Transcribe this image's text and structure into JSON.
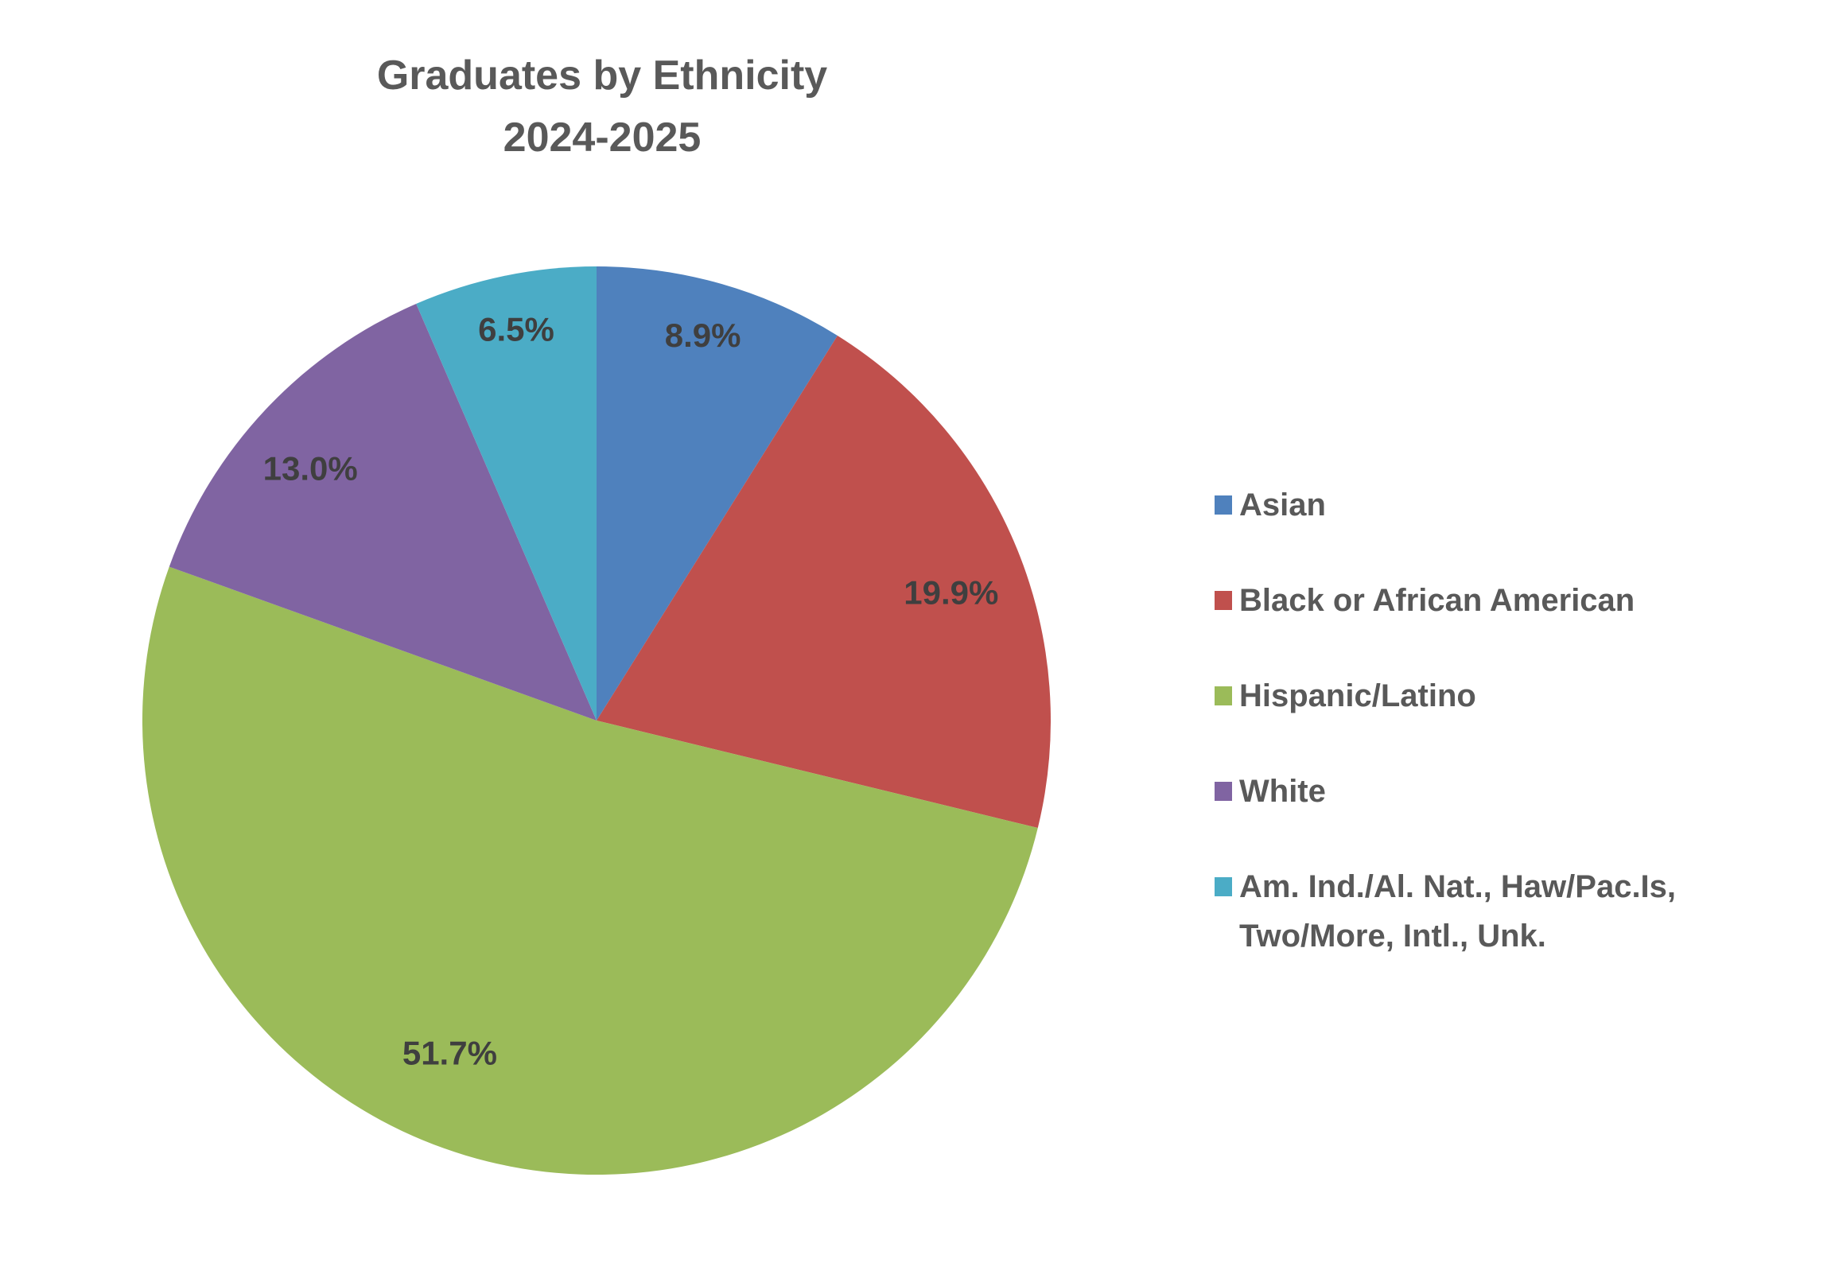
{
  "title": {
    "line1": "Graduates by Ethnicity",
    "line2": "2024-2025"
  },
  "chart_data": {
    "type": "pie",
    "title": "Graduates by Ethnicity 2024-2025",
    "start_angle_deg": 0,
    "direction": "clockwise",
    "legend_position": "right",
    "data_labels": "percent with one decimal, inside slices",
    "background": "#FFFFFF",
    "text_colors": {
      "title": "#595959",
      "legend": "#595959",
      "data_label": "#3F3F3F"
    },
    "slices": [
      {
        "label": "Asian",
        "value": 8.9,
        "display": "8.9%",
        "color": "#4F81BD"
      },
      {
        "label": "Black or African American",
        "value": 19.9,
        "display": "19.9%",
        "color": "#C0504D"
      },
      {
        "label": "Hispanic/Latino",
        "value": 51.7,
        "display": "51.7%",
        "color": "#9BBB59"
      },
      {
        "label": "White",
        "value": 13.0,
        "display": "13.0%",
        "color": "#8064A2"
      },
      {
        "label": "Am. Ind./Al. Nat., Haw/Pac.Is, Two/More, Intl., Unk.",
        "value": 6.5,
        "display": "6.5%",
        "color": "#4BACC6"
      }
    ]
  }
}
